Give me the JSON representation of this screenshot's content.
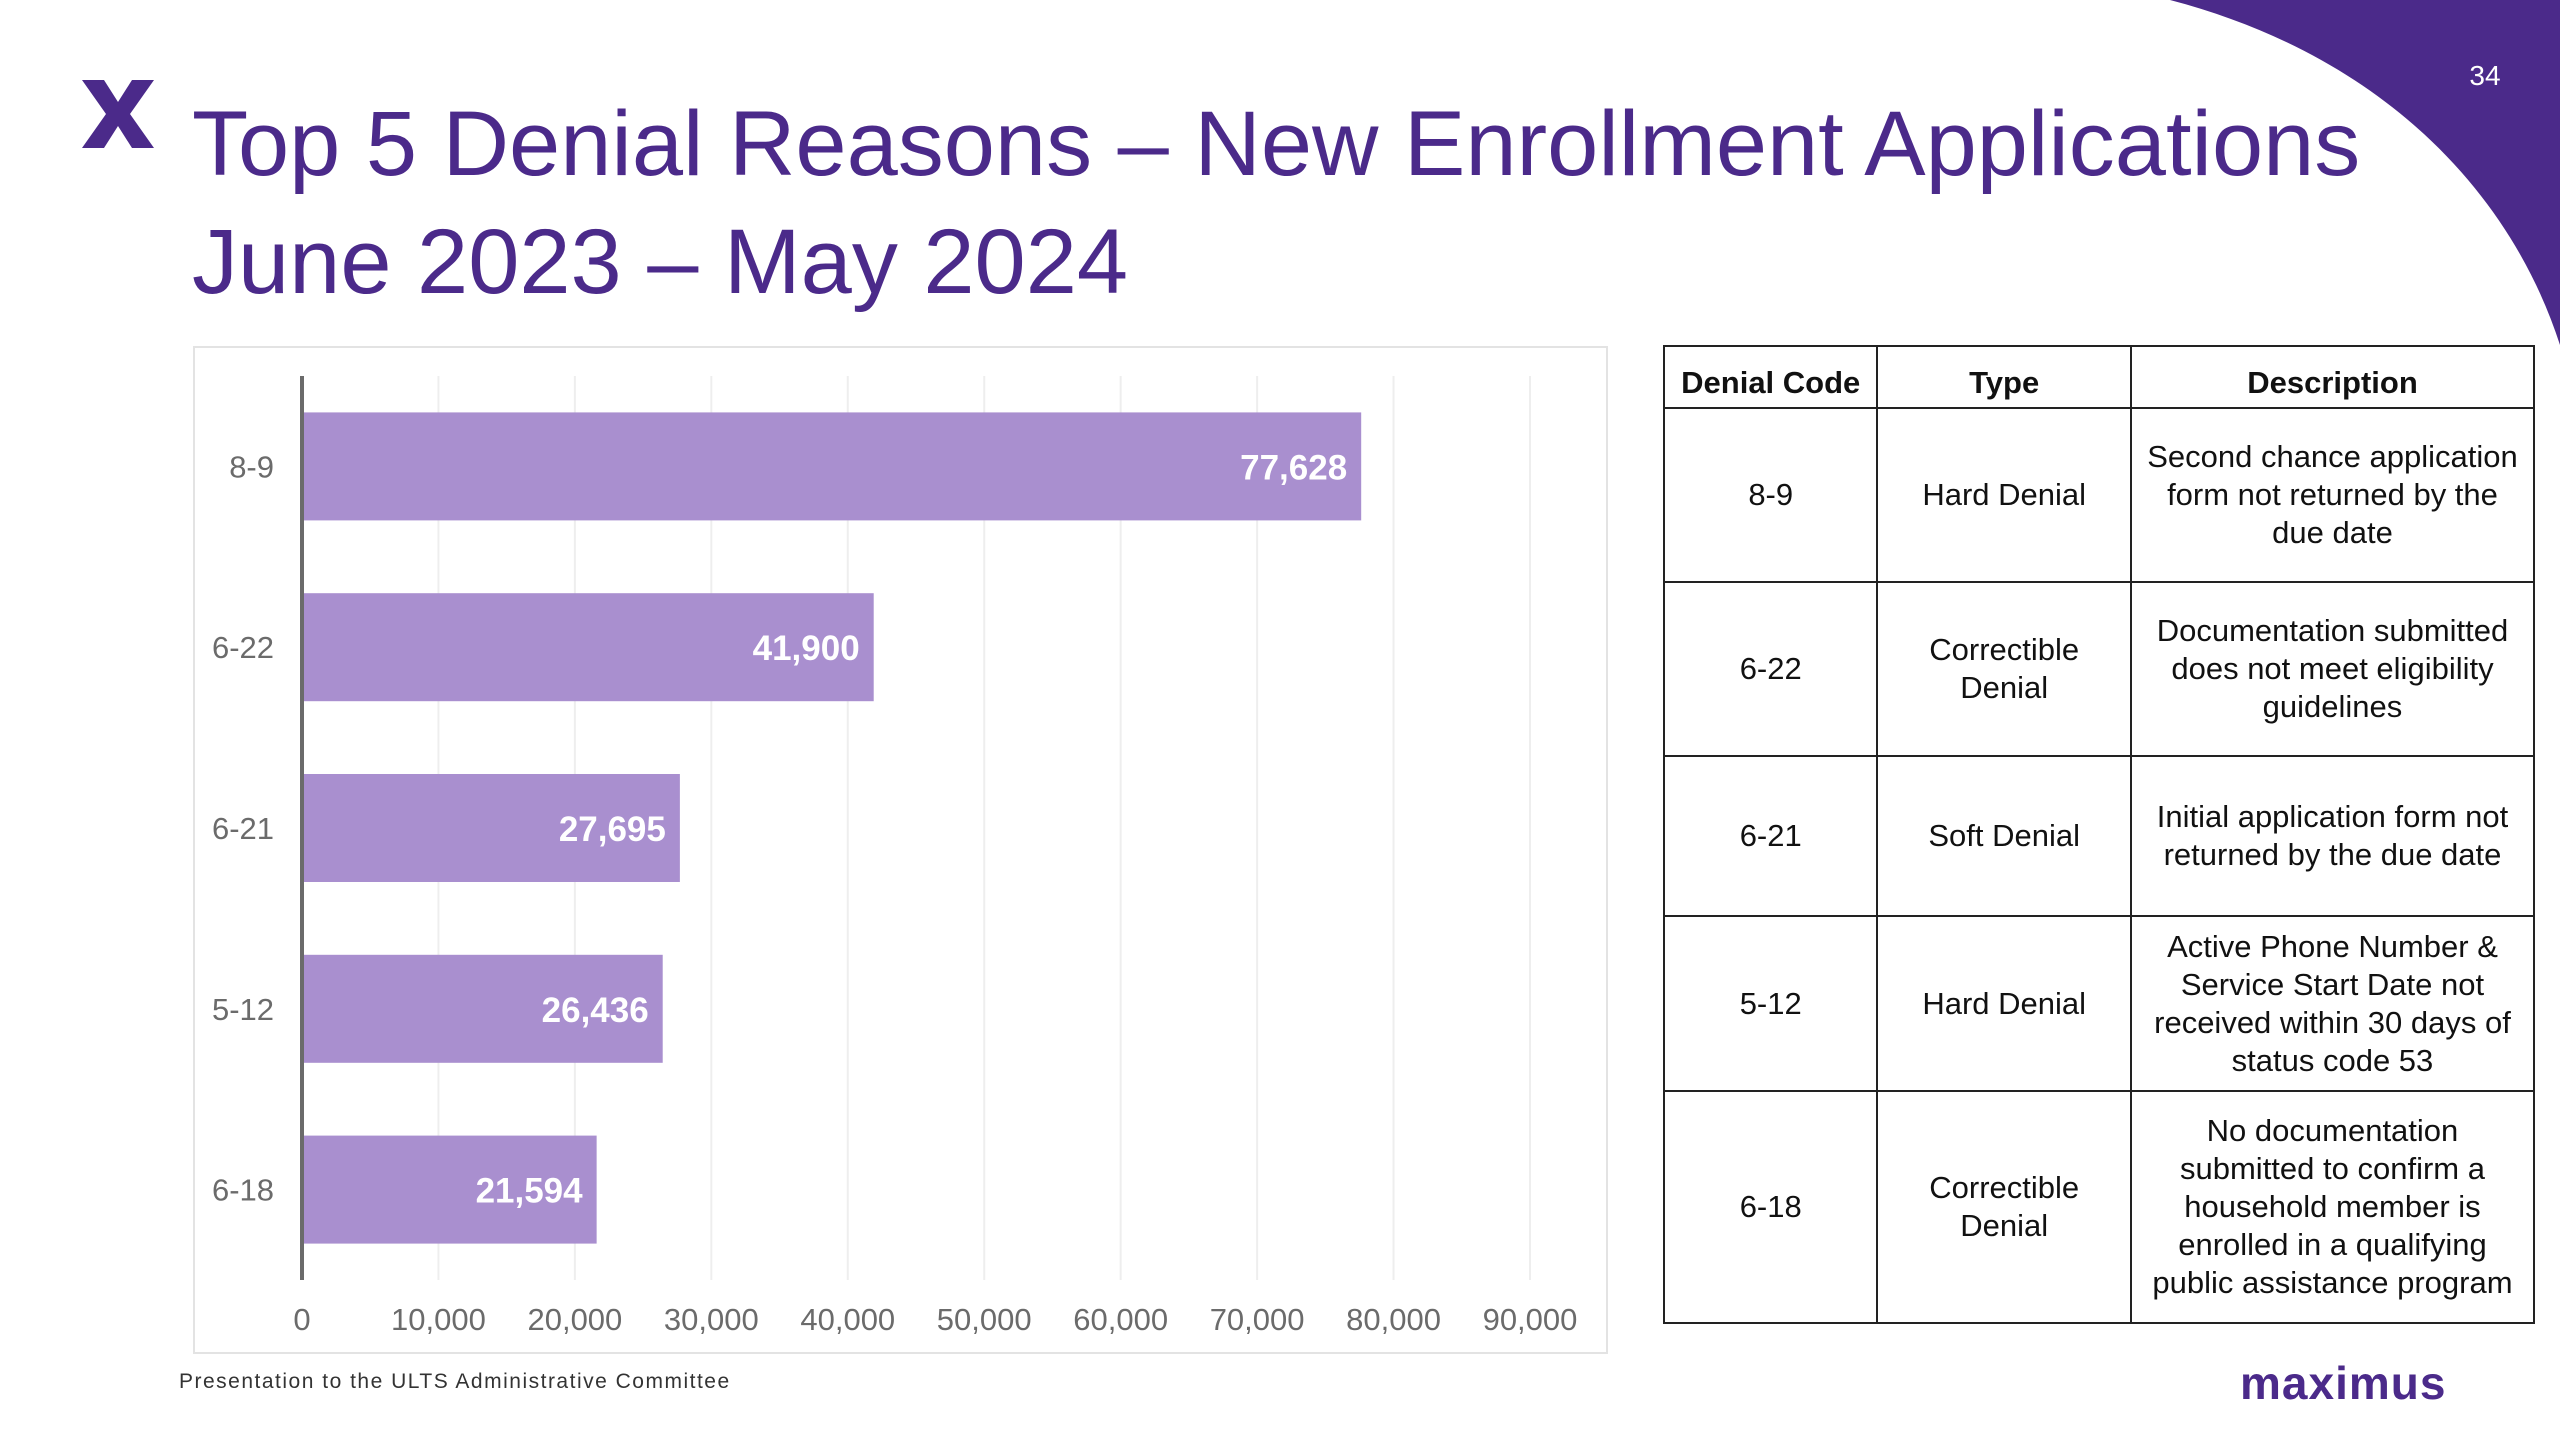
{
  "slide": {
    "page_number": "34",
    "title_line1": "Top 5 Denial Reasons – New Enrollment Applications",
    "title_line2": "June 2023 – May 2024",
    "footer": "Presentation to the ULTS Administrative Committee",
    "brand": "maximus",
    "accent_color": "#4b2a8a",
    "logo_icon": "x-logo-icon"
  },
  "chart_data": {
    "type": "bar",
    "orientation": "horizontal",
    "categories": [
      "8-9",
      "6-22",
      "6-21",
      "5-12",
      "6-18"
    ],
    "values": [
      77628,
      41900,
      27695,
      26436,
      21594
    ],
    "data_labels": [
      "77,628",
      "41,900",
      "27,695",
      "26,436",
      "21,594"
    ],
    "x_ticks": [
      "0",
      "10,000",
      "20,000",
      "30,000",
      "40,000",
      "50,000",
      "60,000",
      "70,000",
      "80,000",
      "90,000"
    ],
    "xlim": [
      0,
      90000
    ],
    "grid": "vertical",
    "legend": "none",
    "bar_color": "#a98fcf"
  },
  "table": {
    "headers": [
      "Denial Code",
      "Type",
      "Description"
    ],
    "rows": [
      {
        "code": "8-9",
        "type": [
          "Hard Denial"
        ],
        "description": [
          "Second chance application",
          "form not returned by the",
          "due date"
        ]
      },
      {
        "code": "6-22",
        "type": [
          "Correctible",
          "Denial"
        ],
        "description": [
          "Documentation submitted",
          "does not meet eligibility",
          "guidelines"
        ]
      },
      {
        "code": "6-21",
        "type": [
          "Soft Denial"
        ],
        "description": [
          "Initial application form not",
          "returned by the due date"
        ]
      },
      {
        "code": "5-12",
        "type": [
          "Hard Denial"
        ],
        "description": [
          "Active Phone Number &",
          "Service Start Date not",
          "received within 30 days of",
          "status code 53"
        ]
      },
      {
        "code": "6-18",
        "type": [
          "Correctible",
          "Denial"
        ],
        "description": [
          "No documentation",
          "submitted to confirm a",
          "household member is",
          "enrolled in a qualifying",
          "public assistance program"
        ]
      }
    ]
  }
}
